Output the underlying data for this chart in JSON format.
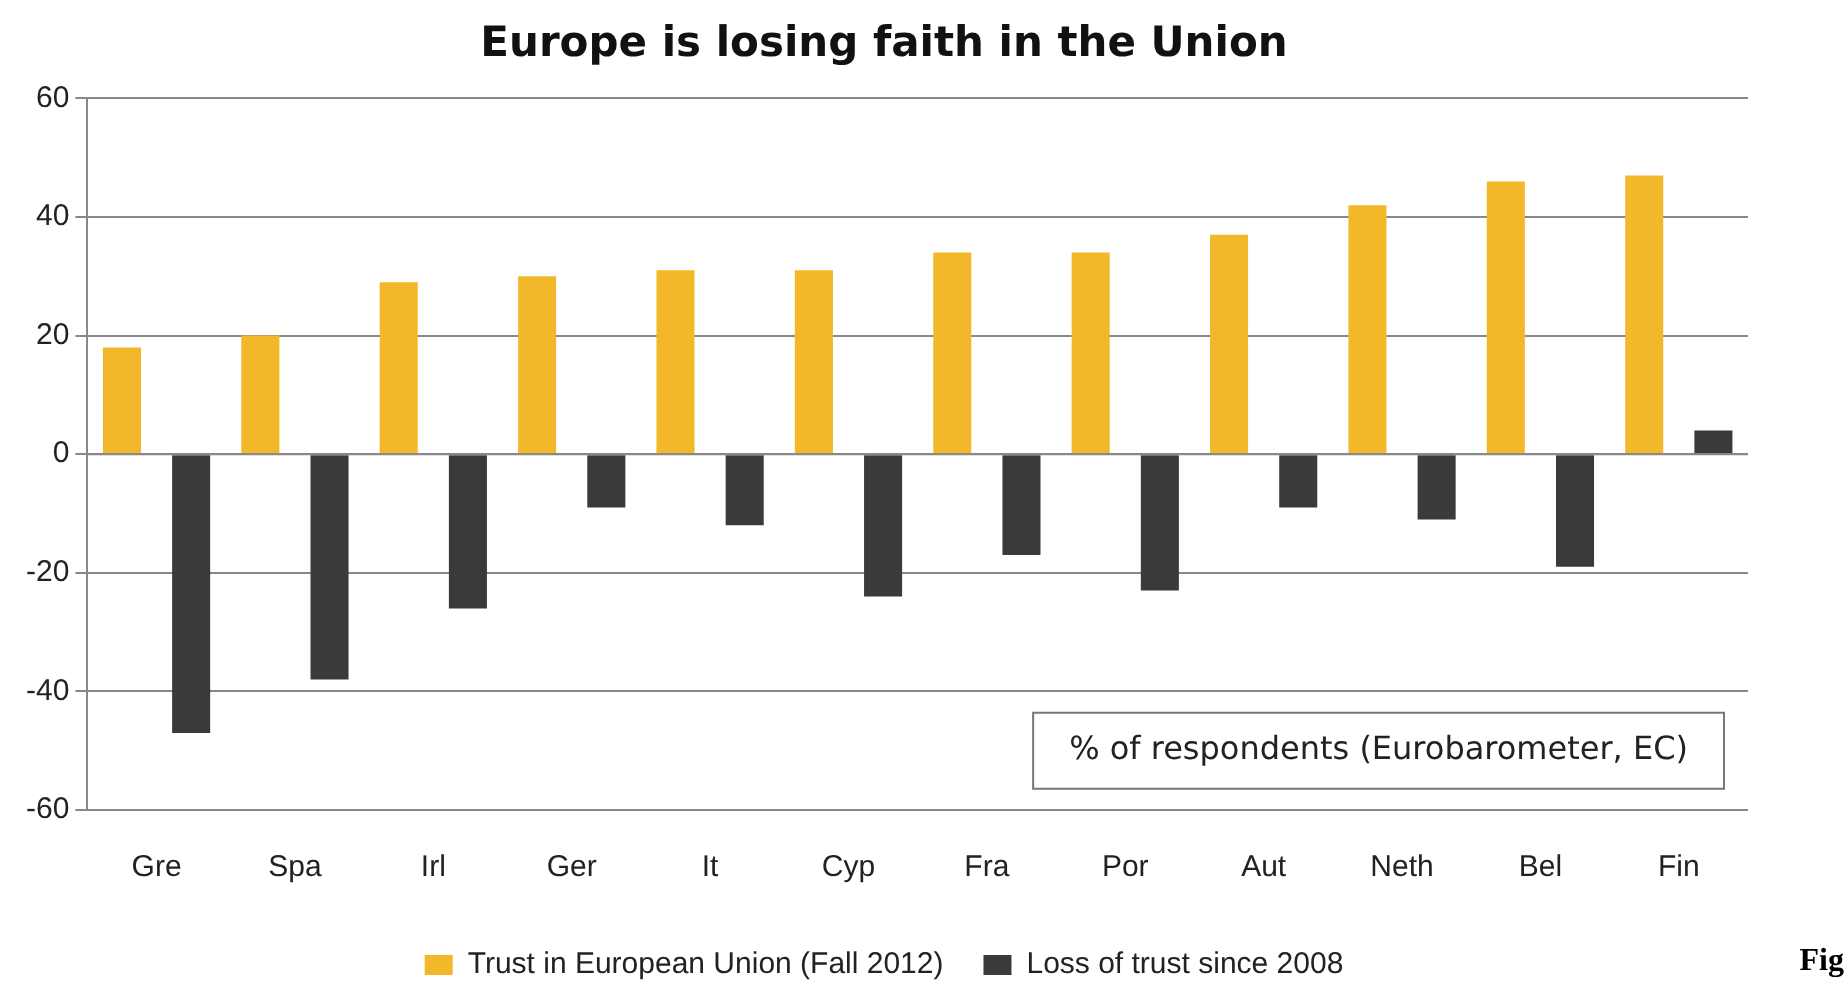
{
  "chart_data": {
    "type": "bar",
    "title": "Europe is losing faith in the Union",
    "categories": [
      "Gre",
      "Spa",
      "Irl",
      "Ger",
      "It",
      "Cyp",
      "Fra",
      "Por",
      "Aut",
      "Neth",
      "Bel",
      "Fin"
    ],
    "series": [
      {
        "name": "Trust in European Union (Fall 2012)",
        "color": "#f2b82a",
        "values": [
          18,
          20,
          29,
          30,
          31,
          31,
          34,
          34,
          37,
          42,
          46,
          47
        ]
      },
      {
        "name": "Loss of trust since 2008",
        "color": "#3a3a3a",
        "values": [
          -47,
          -38,
          -26,
          -9,
          -12,
          -24,
          -17,
          -23,
          -9,
          -11,
          -19,
          4
        ]
      }
    ],
    "ylim": [
      -60,
      60
    ],
    "yticks": [
      -60,
      -40,
      -20,
      0,
      20,
      40,
      60
    ],
    "grid": "y",
    "legend": "bottom",
    "annotations": [
      "% of respondents (Eurobarometer, EC)",
      "Fig"
    ]
  }
}
